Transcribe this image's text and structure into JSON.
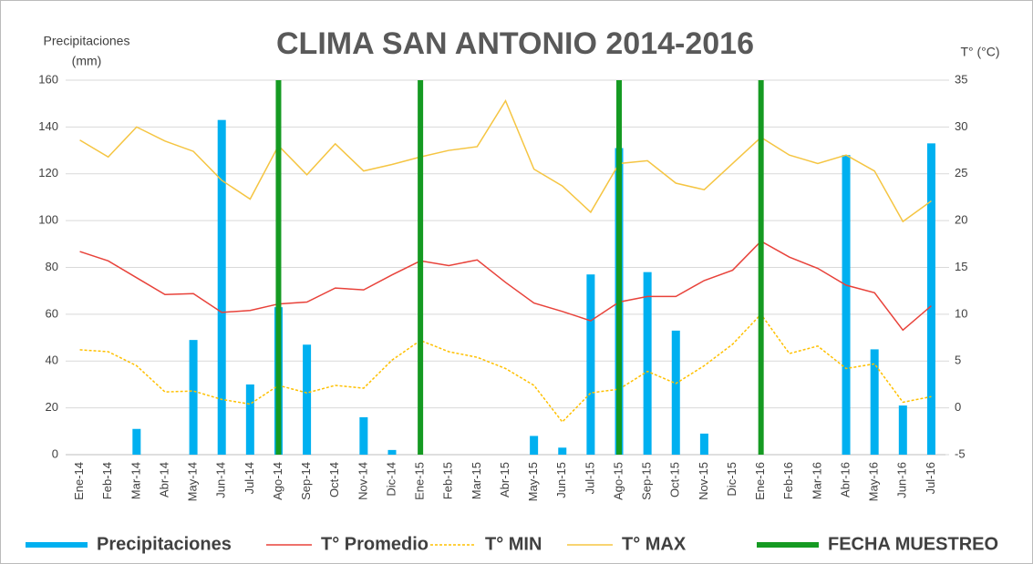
{
  "chart_data": {
    "type": "combo",
    "title": "CLIMA SAN ANTONIO 2014-2016",
    "ylabel": [
      "Precipitaciones",
      "(mm)"
    ],
    "y2label": "T° (°C)",
    "categories": [
      "Ene-14",
      "Feb-14",
      "Mar-14",
      "Abr-14",
      "May-14",
      "Jun-14",
      "Jul-14",
      "Ago-14",
      "Sep-14",
      "Oct-14",
      "Nov-14",
      "Dic-14",
      "Ene-15",
      "Feb-15",
      "Mar-15",
      "Abr-15",
      "May-15",
      "Jun-15",
      "Jul-15",
      "Ago-15",
      "Sep-15",
      "Oct-15",
      "Nov-15",
      "Dic-15",
      "Ene-16",
      "Feb-16",
      "Mar-16",
      "Abr-16",
      "May-16",
      "Jun-16",
      "Jul-16"
    ],
    "ylim": [
      0,
      160
    ],
    "yticks": [
      0,
      20,
      40,
      60,
      80,
      100,
      120,
      140,
      160
    ],
    "y2lim": [
      -5,
      35
    ],
    "y2ticks": [
      -5,
      0,
      5,
      10,
      15,
      20,
      25,
      30,
      35
    ],
    "series": [
      {
        "name": "Precipitaciones",
        "kind": "bar",
        "color": "#00b0f0",
        "axis": "y",
        "values": [
          0,
          0,
          11,
          0,
          49,
          143,
          30,
          63,
          47,
          0,
          16,
          2,
          0,
          0,
          0,
          0,
          8,
          3,
          77,
          131,
          78,
          53,
          9,
          0,
          0,
          0,
          0,
          128,
          45,
          21,
          133
        ]
      },
      {
        "name": "T° Promedio",
        "kind": "line",
        "color": "#e8423a",
        "axis": "y2",
        "values": [
          16.7,
          15.7,
          13.9,
          12.1,
          12.2,
          10.2,
          10.4,
          11.1,
          11.3,
          12.8,
          12.6,
          14.2,
          15.7,
          15.2,
          15.8,
          13.4,
          11.2,
          10.3,
          9.3,
          11.3,
          11.9,
          11.9,
          13.6,
          14.7,
          17.8,
          16.1,
          14.9,
          13.1,
          12.3,
          8.3,
          10.9
        ]
      },
      {
        "name": "T° MIN",
        "kind": "line",
        "dash": true,
        "color": "#ffc000",
        "axis": "y2",
        "values": [
          6.2,
          6.0,
          4.5,
          1.7,
          1.8,
          0.9,
          0.4,
          2.4,
          1.6,
          2.4,
          2.1,
          5.1,
          7.2,
          6.0,
          5.4,
          4.2,
          2.4,
          -1.5,
          1.6,
          2.0,
          3.9,
          2.6,
          4.5,
          6.8,
          10.0,
          5.8,
          6.6,
          4.2,
          4.7,
          0.6,
          1.2
        ]
      },
      {
        "name": "T° MAX",
        "kind": "line",
        "color": "#f5c542",
        "axis": "y2",
        "values": [
          28.6,
          26.8,
          30.0,
          28.5,
          27.4,
          24.3,
          22.3,
          28.0,
          24.9,
          28.2,
          25.3,
          26.0,
          26.8,
          27.5,
          27.9,
          32.8,
          25.5,
          23.7,
          20.9,
          26.1,
          26.4,
          24.0,
          23.3,
          26.1,
          28.9,
          27.0,
          26.1,
          27.0,
          25.3,
          19.9,
          22.1
        ]
      },
      {
        "name": "FECHA MUESTREO",
        "kind": "bar",
        "color": "#159a22",
        "axis": "y",
        "values": [
          null,
          null,
          null,
          null,
          null,
          null,
          null,
          160,
          null,
          null,
          null,
          null,
          160,
          null,
          null,
          null,
          null,
          null,
          null,
          160,
          null,
          null,
          null,
          null,
          160,
          null,
          null,
          null,
          null,
          null,
          null
        ]
      }
    ]
  }
}
